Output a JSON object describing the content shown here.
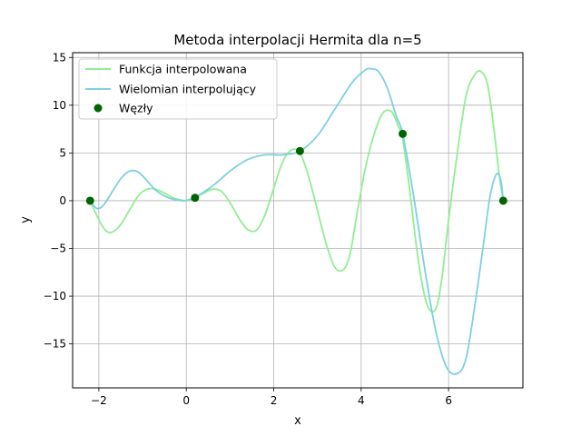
{
  "chart_data": {
    "type": "line",
    "title": "Metoda interpolacji Hermita dla n=5",
    "xlabel": "x",
    "ylabel": "y",
    "xlim": [
      -2.6,
      7.7
    ],
    "ylim": [
      -19.6,
      15.5
    ],
    "grid": true,
    "legend_position": "top-left",
    "x_ticks": [
      {
        "value": -2,
        "label": "−2"
      },
      {
        "value": 0,
        "label": "0"
      },
      {
        "value": 2,
        "label": "2"
      },
      {
        "value": 4,
        "label": "4"
      },
      {
        "value": 6,
        "label": "6"
      }
    ],
    "y_ticks": [
      {
        "value": -15,
        "label": "−15"
      },
      {
        "value": -10,
        "label": "−10"
      },
      {
        "value": -5,
        "label": "−5"
      },
      {
        "value": 0,
        "label": "0"
      },
      {
        "value": 5,
        "label": "5"
      },
      {
        "value": 10,
        "label": "10"
      },
      {
        "value": 15,
        "label": "15"
      }
    ],
    "series": [
      {
        "name": "Funkcja interpolowana",
        "style": "line",
        "color": "#90ee90",
        "x": [
          -2.2,
          -2.0,
          -1.85,
          -1.7,
          -1.5,
          -1.3,
          -1.1,
          -0.9,
          -0.7,
          -0.5,
          -0.3,
          -0.1,
          0.0,
          0.2,
          0.4,
          0.6,
          0.8,
          1.0,
          1.2,
          1.4,
          1.6,
          1.8,
          2.0,
          2.2,
          2.4,
          2.6,
          2.8,
          3.0,
          3.2,
          3.4,
          3.6,
          3.75,
          3.9,
          4.1,
          4.3,
          4.5,
          4.7,
          4.85,
          4.95,
          5.1,
          5.3,
          5.5,
          5.7,
          5.85,
          6.0,
          6.2,
          6.4,
          6.6,
          6.75,
          6.9,
          7.05,
          7.15,
          7.25
        ],
        "y": [
          0.0,
          -2.0,
          -3.1,
          -3.3,
          -2.5,
          -1.0,
          0.5,
          1.2,
          1.2,
          0.8,
          0.3,
          0.05,
          0.0,
          0.3,
          0.8,
          1.2,
          1.0,
          -0.2,
          -1.8,
          -3.0,
          -3.1,
          -1.5,
          1.3,
          4.0,
          5.3,
          5.0,
          2.5,
          -1.0,
          -4.5,
          -7.0,
          -7.2,
          -5.5,
          -1.5,
          3.5,
          7.0,
          9.2,
          9.3,
          7.8,
          6.5,
          1.5,
          -6.0,
          -10.8,
          -11.4,
          -8.0,
          -2.0,
          5.0,
          11.0,
          13.2,
          13.5,
          12.0,
          7.0,
          3.0,
          0.0
        ]
      },
      {
        "name": "Wielomian interpolujący",
        "style": "line",
        "color": "#7ed0e0",
        "x": [
          -2.2,
          -2.05,
          -1.9,
          -1.7,
          -1.5,
          -1.3,
          -1.1,
          -0.9,
          -0.7,
          -0.5,
          -0.3,
          -0.1,
          0.05,
          0.2,
          0.4,
          0.7,
          1.0,
          1.4,
          1.8,
          2.2,
          2.6,
          3.0,
          3.4,
          3.8,
          4.1,
          4.25,
          4.4,
          4.6,
          4.8,
          4.95,
          5.2,
          5.45,
          5.7,
          5.95,
          6.2,
          6.4,
          6.6,
          6.8,
          6.95,
          7.1,
          7.2,
          7.25
        ],
        "y": [
          0.0,
          -0.8,
          -0.5,
          0.9,
          2.3,
          3.1,
          3.0,
          2.1,
          1.1,
          0.5,
          0.15,
          0.0,
          0.1,
          0.35,
          0.9,
          1.9,
          3.1,
          4.3,
          4.8,
          4.8,
          5.2,
          6.8,
          9.6,
          12.4,
          13.7,
          13.8,
          13.5,
          11.8,
          8.9,
          7.0,
          0.5,
          -7.0,
          -13.5,
          -17.4,
          -18.1,
          -16.5,
          -11.0,
          -4.5,
          0.5,
          2.8,
          2.0,
          0.0
        ]
      },
      {
        "name": "Węzły",
        "style": "scatter",
        "color": "#006400",
        "x": [
          -2.2,
          0.2,
          2.6,
          4.95,
          7.25
        ],
        "y": [
          0.0,
          0.3,
          5.2,
          7.0,
          0.0
        ]
      }
    ]
  }
}
